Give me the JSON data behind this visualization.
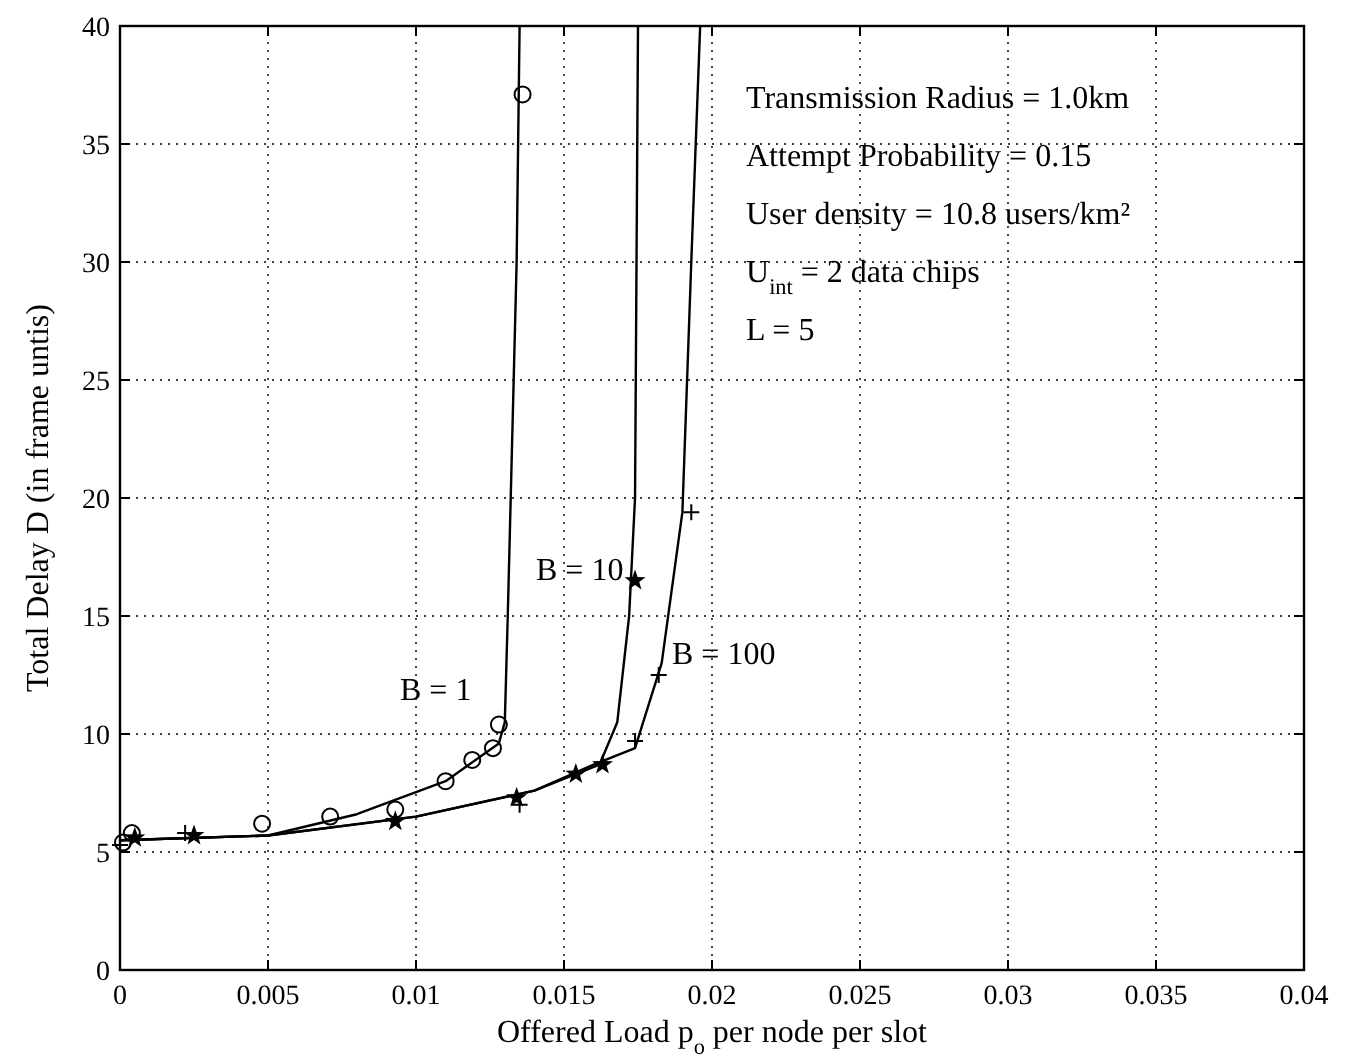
{
  "chart_data": {
    "type": "line",
    "xlabel": "Offered Load p$_{o}$ per node per slot",
    "ylabel": "Total Delay D (in frame untis)",
    "xlim": [
      0,
      0.04
    ],
    "ylim": [
      0,
      40
    ],
    "xticks": [
      0,
      0.005,
      0.01,
      0.015,
      0.02,
      0.025,
      0.03,
      0.035,
      0.04
    ],
    "yticks": [
      0,
      5,
      10,
      15,
      20,
      25,
      30,
      35,
      40
    ],
    "grid": true,
    "line_style": "solid",
    "marker": "none",
    "series": [
      {
        "name": "B = 1",
        "color": "#000000",
        "x": [
          0,
          0.005,
          0.008,
          0.011,
          0.0128,
          0.013,
          0.0131,
          0.0134,
          0.0135
        ],
        "values": [
          5.5,
          5.7,
          6.6,
          8.0,
          9.6,
          10.5,
          15,
          30,
          40
        ]
      },
      {
        "name": "B = 10",
        "color": "#000000",
        "x": [
          0,
          0.005,
          0.01,
          0.014,
          0.0162,
          0.0168,
          0.0172,
          0.0174,
          0.0175
        ],
        "values": [
          5.5,
          5.7,
          6.5,
          7.6,
          8.7,
          10.5,
          15,
          20,
          40
        ]
      },
      {
        "name": "B = 100",
        "color": "#000000",
        "x": [
          0,
          0.005,
          0.01,
          0.014,
          0.016,
          0.0174,
          0.0183,
          0.019,
          0.0193,
          0.0196
        ],
        "values": [
          5.5,
          5.7,
          6.5,
          7.6,
          8.7,
          9.4,
          13,
          19.4,
          30,
          40
        ]
      },
      {
        "type": "scatter",
        "marker": "circle",
        "color": "#000000",
        "x": [
          0.0001,
          0.0004,
          0.0048,
          0.0071,
          0.0093,
          0.011,
          0.0119,
          0.0126,
          0.0128,
          0.0136
        ],
        "values": [
          5.4,
          5.8,
          6.2,
          6.5,
          6.8,
          8.0,
          8.9,
          9.4,
          10.4,
          37.1
        ]
      },
      {
        "type": "scatter",
        "marker": "star",
        "color": "#000000",
        "x": [
          0.0005,
          0.0025,
          0.0093,
          0.0134,
          0.0154,
          0.0163,
          0.0174
        ],
        "values": [
          5.6,
          5.7,
          6.3,
          7.3,
          8.3,
          8.7,
          16.5
        ]
      },
      {
        "type": "scatter",
        "marker": "cross",
        "color": "#000000",
        "x": [
          0,
          0.0022,
          0.0135,
          0.0174,
          0.0182,
          0.0193
        ],
        "values": [
          5.3,
          5.8,
          7.0,
          9.7,
          12.5,
          19.4
        ]
      }
    ],
    "annotations": [
      "Transmission Radius = 1.0km",
      "Attempt Probability = 0.15",
      "User density = 10.8 users/km²",
      "U$_{int}$ = 2 data chips",
      "L = 5"
    ]
  }
}
